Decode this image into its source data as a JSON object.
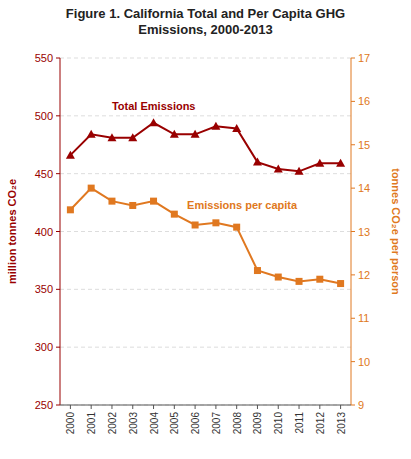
{
  "chart_data": {
    "type": "line",
    "title": "Figure 1. California Total and Per Capita GHG\nEmissions, 2000-2013",
    "x": [
      2000,
      2001,
      2002,
      2003,
      2004,
      2005,
      2006,
      2007,
      2008,
      2009,
      2010,
      2011,
      2012,
      2013
    ],
    "series": [
      {
        "name": "Total Emissions",
        "color": "#990000",
        "marker": "triangle",
        "values": [
          466,
          484,
          481,
          481,
          494,
          484,
          484,
          491,
          489,
          460,
          454,
          452,
          459,
          459
        ]
      },
      {
        "name": "Emissions per capita",
        "color": "#E07820",
        "marker": "square",
        "axis": "y2",
        "values": [
          13.5,
          14.0,
          13.7,
          13.6,
          13.7,
          13.4,
          13.15,
          13.2,
          13.1,
          12.1,
          11.95,
          11.85,
          11.9,
          11.8
        ]
      }
    ],
    "ylabel": "million tonnes CO₂e",
    "y2label": "tonnes CO₂e per person",
    "xlim": [
      1999.5,
      2013.5
    ],
    "xticks": [
      2000,
      2001,
      2002,
      2003,
      2004,
      2005,
      2006,
      2007,
      2008,
      2009,
      2010,
      2011,
      2012,
      2013
    ],
    "ylim": [
      250,
      550
    ],
    "yticks": [
      250,
      300,
      350,
      400,
      450,
      500,
      550
    ],
    "y2lim": [
      9,
      17
    ],
    "y2ticks": [
      9,
      10,
      11,
      12,
      13,
      14,
      15,
      16,
      17
    ],
    "grid": true
  }
}
